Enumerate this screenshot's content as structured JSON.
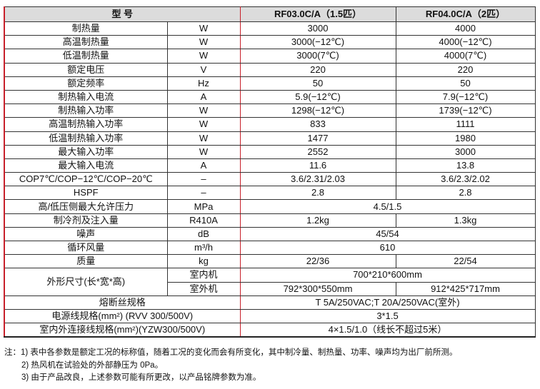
{
  "table": {
    "header": {
      "label": "型 号",
      "model_a": "RF03.0C/A（1.5匹）",
      "model_b": "RF04.0C/A（2匹）"
    },
    "rows": [
      {
        "name": "制热量",
        "unit": "W",
        "a": "3000",
        "b": "4000"
      },
      {
        "name": "高温制热量",
        "unit": "W",
        "a": "3000(−12℃)",
        "b": "4000(−12℃)"
      },
      {
        "name": "低温制热量",
        "unit": "W",
        "a": "3000(7℃)",
        "b": "4000(7℃)"
      },
      {
        "name": "额定电压",
        "unit": "V",
        "a": "220",
        "b": "220"
      },
      {
        "name": "额定频率",
        "unit": "Hz",
        "a": "50",
        "b": "50"
      },
      {
        "name": "制热输入电流",
        "unit": "A",
        "a": "5.9(−12℃)",
        "b": "7.9(−12℃)"
      },
      {
        "name": "制热输入功率",
        "unit": "W",
        "a": "1298(−12℃)",
        "b": "1739(−12℃)"
      },
      {
        "name": "高温制热输入功率",
        "unit": "W",
        "a": "833",
        "b": "1111"
      },
      {
        "name": "低温制热输入功率",
        "unit": "W",
        "a": "1477",
        "b": "1980"
      },
      {
        "name": "最大输入功率",
        "unit": "W",
        "a": "2552",
        "b": "3000"
      },
      {
        "name": "最大输入电流",
        "unit": "A",
        "a": "11.6",
        "b": "13.8"
      },
      {
        "name": "COP7℃/COP−12℃/COP−20℃",
        "unit": "–",
        "a": "3.6/2.31/2.03",
        "b": "3.6/2.3/2.02"
      },
      {
        "name": "HSPF",
        "unit": "–",
        "a": "2.8",
        "b": "2.8"
      },
      {
        "name": "高/低压侧最大允许压力",
        "unit": "MPa",
        "ab": "4.5/1.5"
      },
      {
        "name": "制冷剂及注入量",
        "unit": "R410A",
        "a": "1.2kg",
        "b": "1.3kg"
      },
      {
        "name": "噪声",
        "unit": "dB",
        "ab": "45/54"
      },
      {
        "name": "循环风量",
        "unit": "m³/h",
        "ab": "610"
      },
      {
        "name": "质量",
        "unit": "kg",
        "a": "22/36",
        "b": "22/54"
      }
    ],
    "dimensions": {
      "name": "外形尺寸(长*宽*高)",
      "indoor_label": "室内机",
      "indoor_value": "700*210*600mm",
      "outdoor_label": "室外机",
      "outdoor_a": "792*300*550mm",
      "outdoor_b": "912*425*717mm"
    },
    "tail_rows": [
      {
        "name": "熔断丝规格",
        "value": "T 5A/250VAC;T 20A/250VAC(室外)"
      },
      {
        "name": "电源线规格(mm²) (RVV 300/500V)",
        "value": "3*1.5"
      },
      {
        "name": "室内外连接线规格(mm²)(YZW300/500V)",
        "value": "4×1.5/1.0（线长不超过5米）"
      }
    ]
  },
  "notes": [
    "注：1) 表中各参数是额定工况的标称值，随着工况的变化而会有所变化，其中制冷量、制热量、功率、噪声均为出厂前所测。",
    "2) 热风机在试验处的外部静压为 0Pa。",
    "3) 由于产品改良，上述参数可能有所更改，以产品铭牌参数为准。"
  ],
  "colors": {
    "accent_border": "#c8202a",
    "header_bg": "#dcdcdc"
  }
}
